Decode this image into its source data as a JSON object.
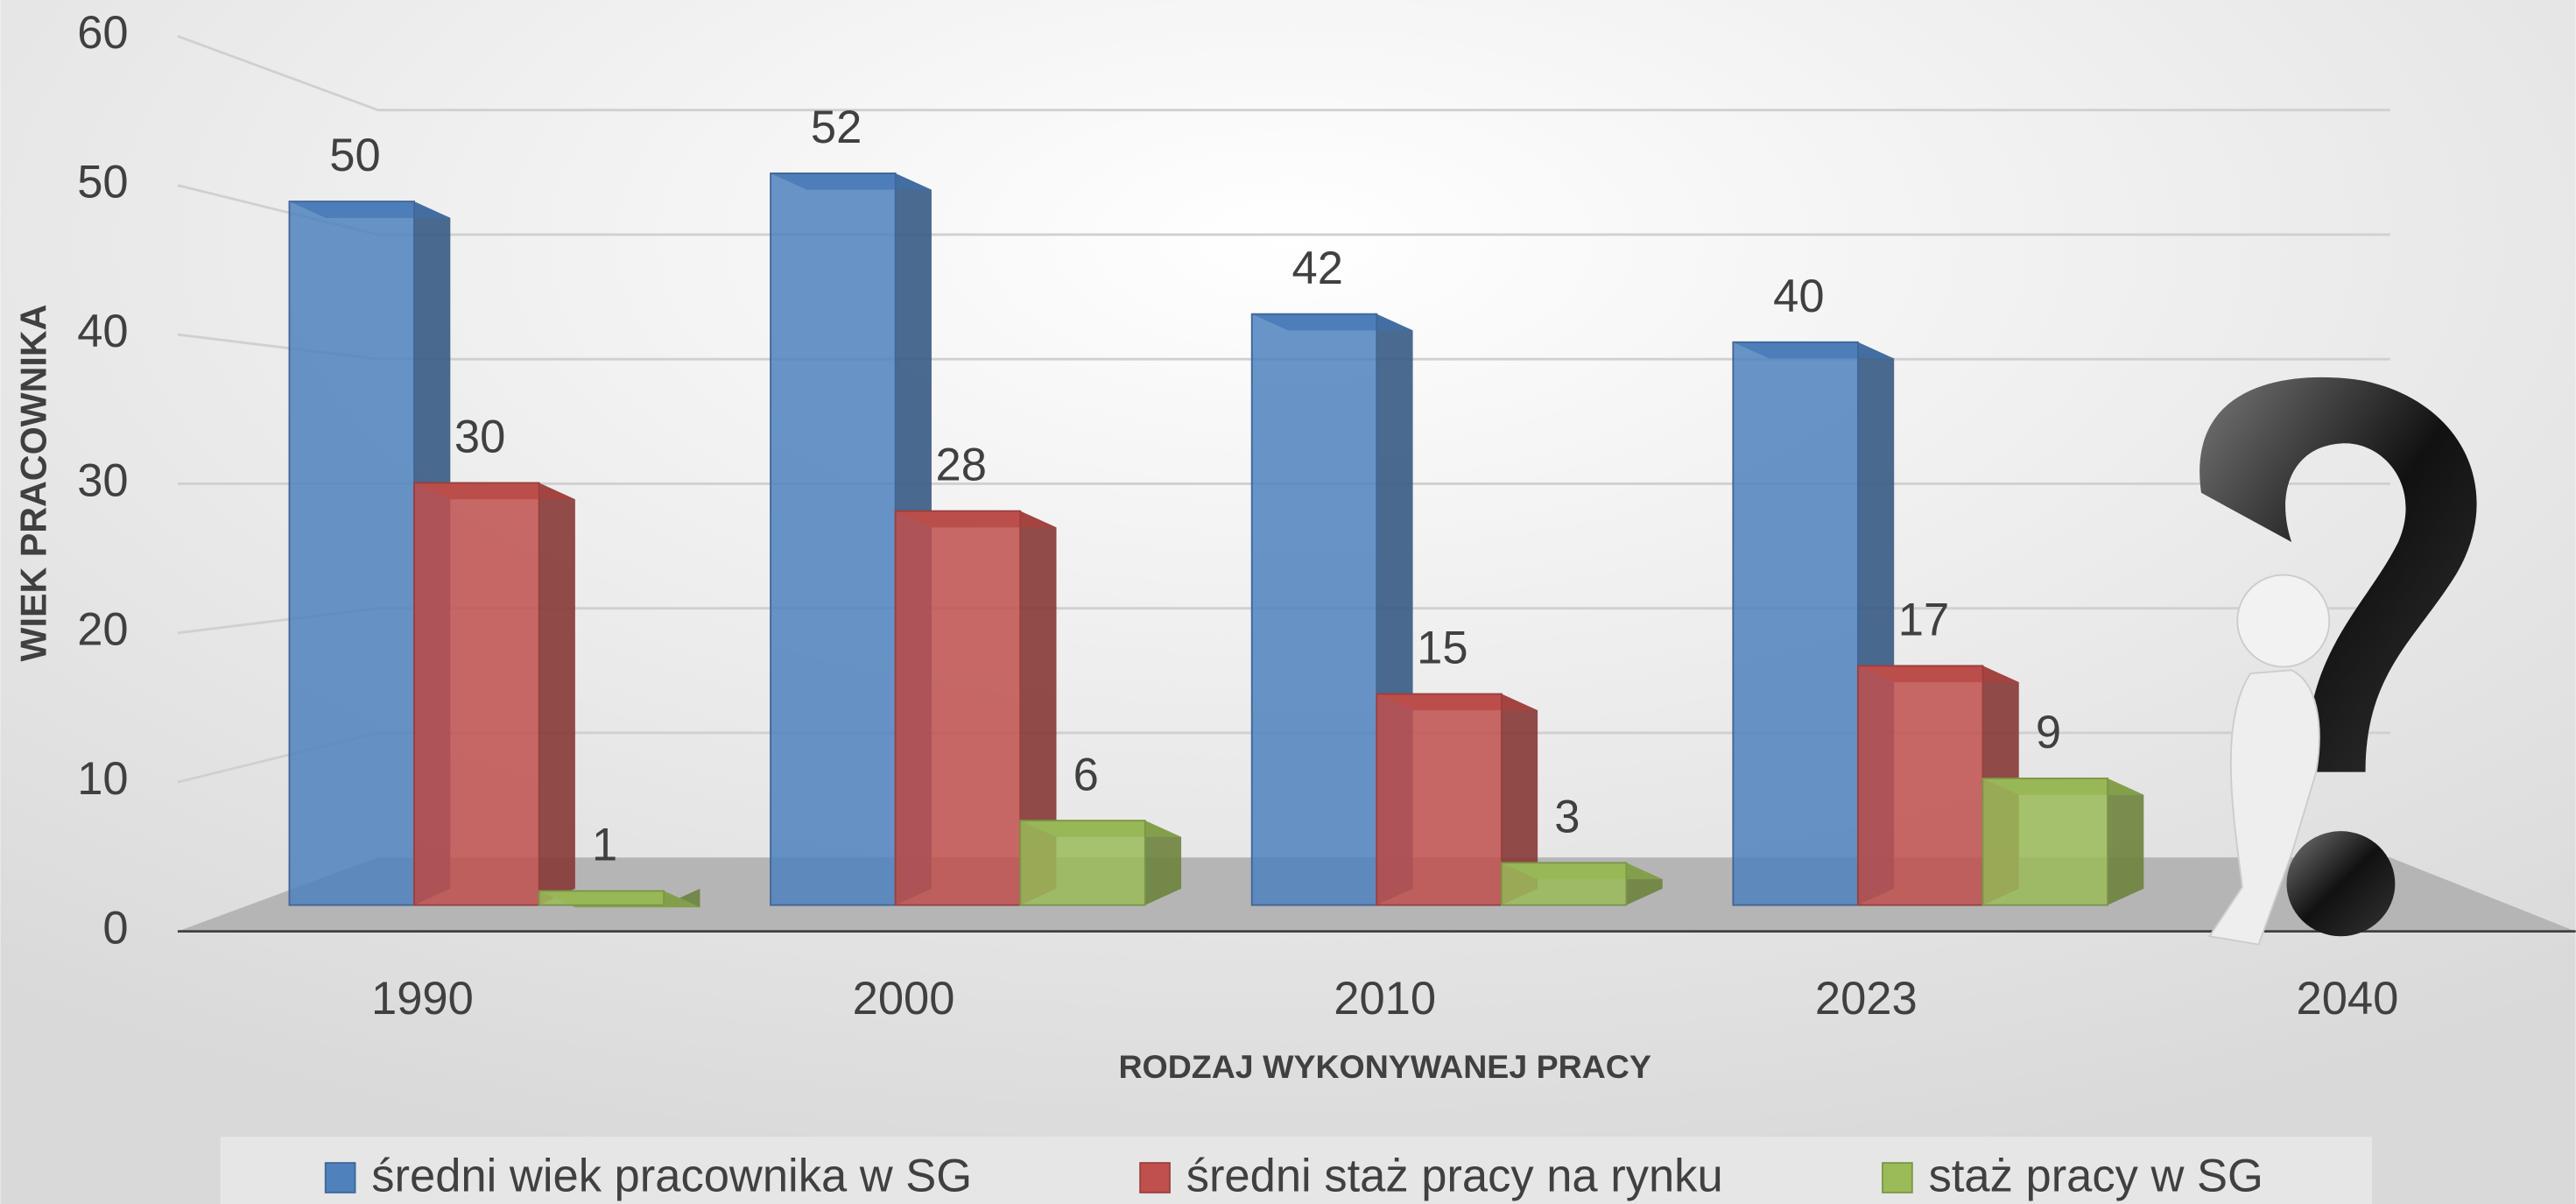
{
  "chart_data": {
    "type": "bar3d",
    "x_label": "RODZAJ WYKONYWANEJ PRACY",
    "y_label": "WIEK PRACOWNIKA",
    "categories": [
      "1990",
      "2000",
      "2010",
      "2023",
      "2040"
    ],
    "series": [
      {
        "name": "średni wiek pracownika w SG",
        "color": "#4f81bd",
        "values": [
          50,
          52,
          42,
          40,
          null
        ]
      },
      {
        "name": "średni staż pracy na rynku",
        "color": "#c0504d",
        "values": [
          30,
          28,
          15,
          17,
          null
        ]
      },
      {
        "name": "staż pracy w SG",
        "color": "#9bbb59",
        "values": [
          1,
          6,
          3,
          9,
          null
        ]
      }
    ],
    "ylim": [
      0,
      60
    ],
    "yticks": [
      0,
      10,
      20,
      30,
      40,
      50,
      60
    ],
    "grid": true,
    "legend": "bottom"
  }
}
